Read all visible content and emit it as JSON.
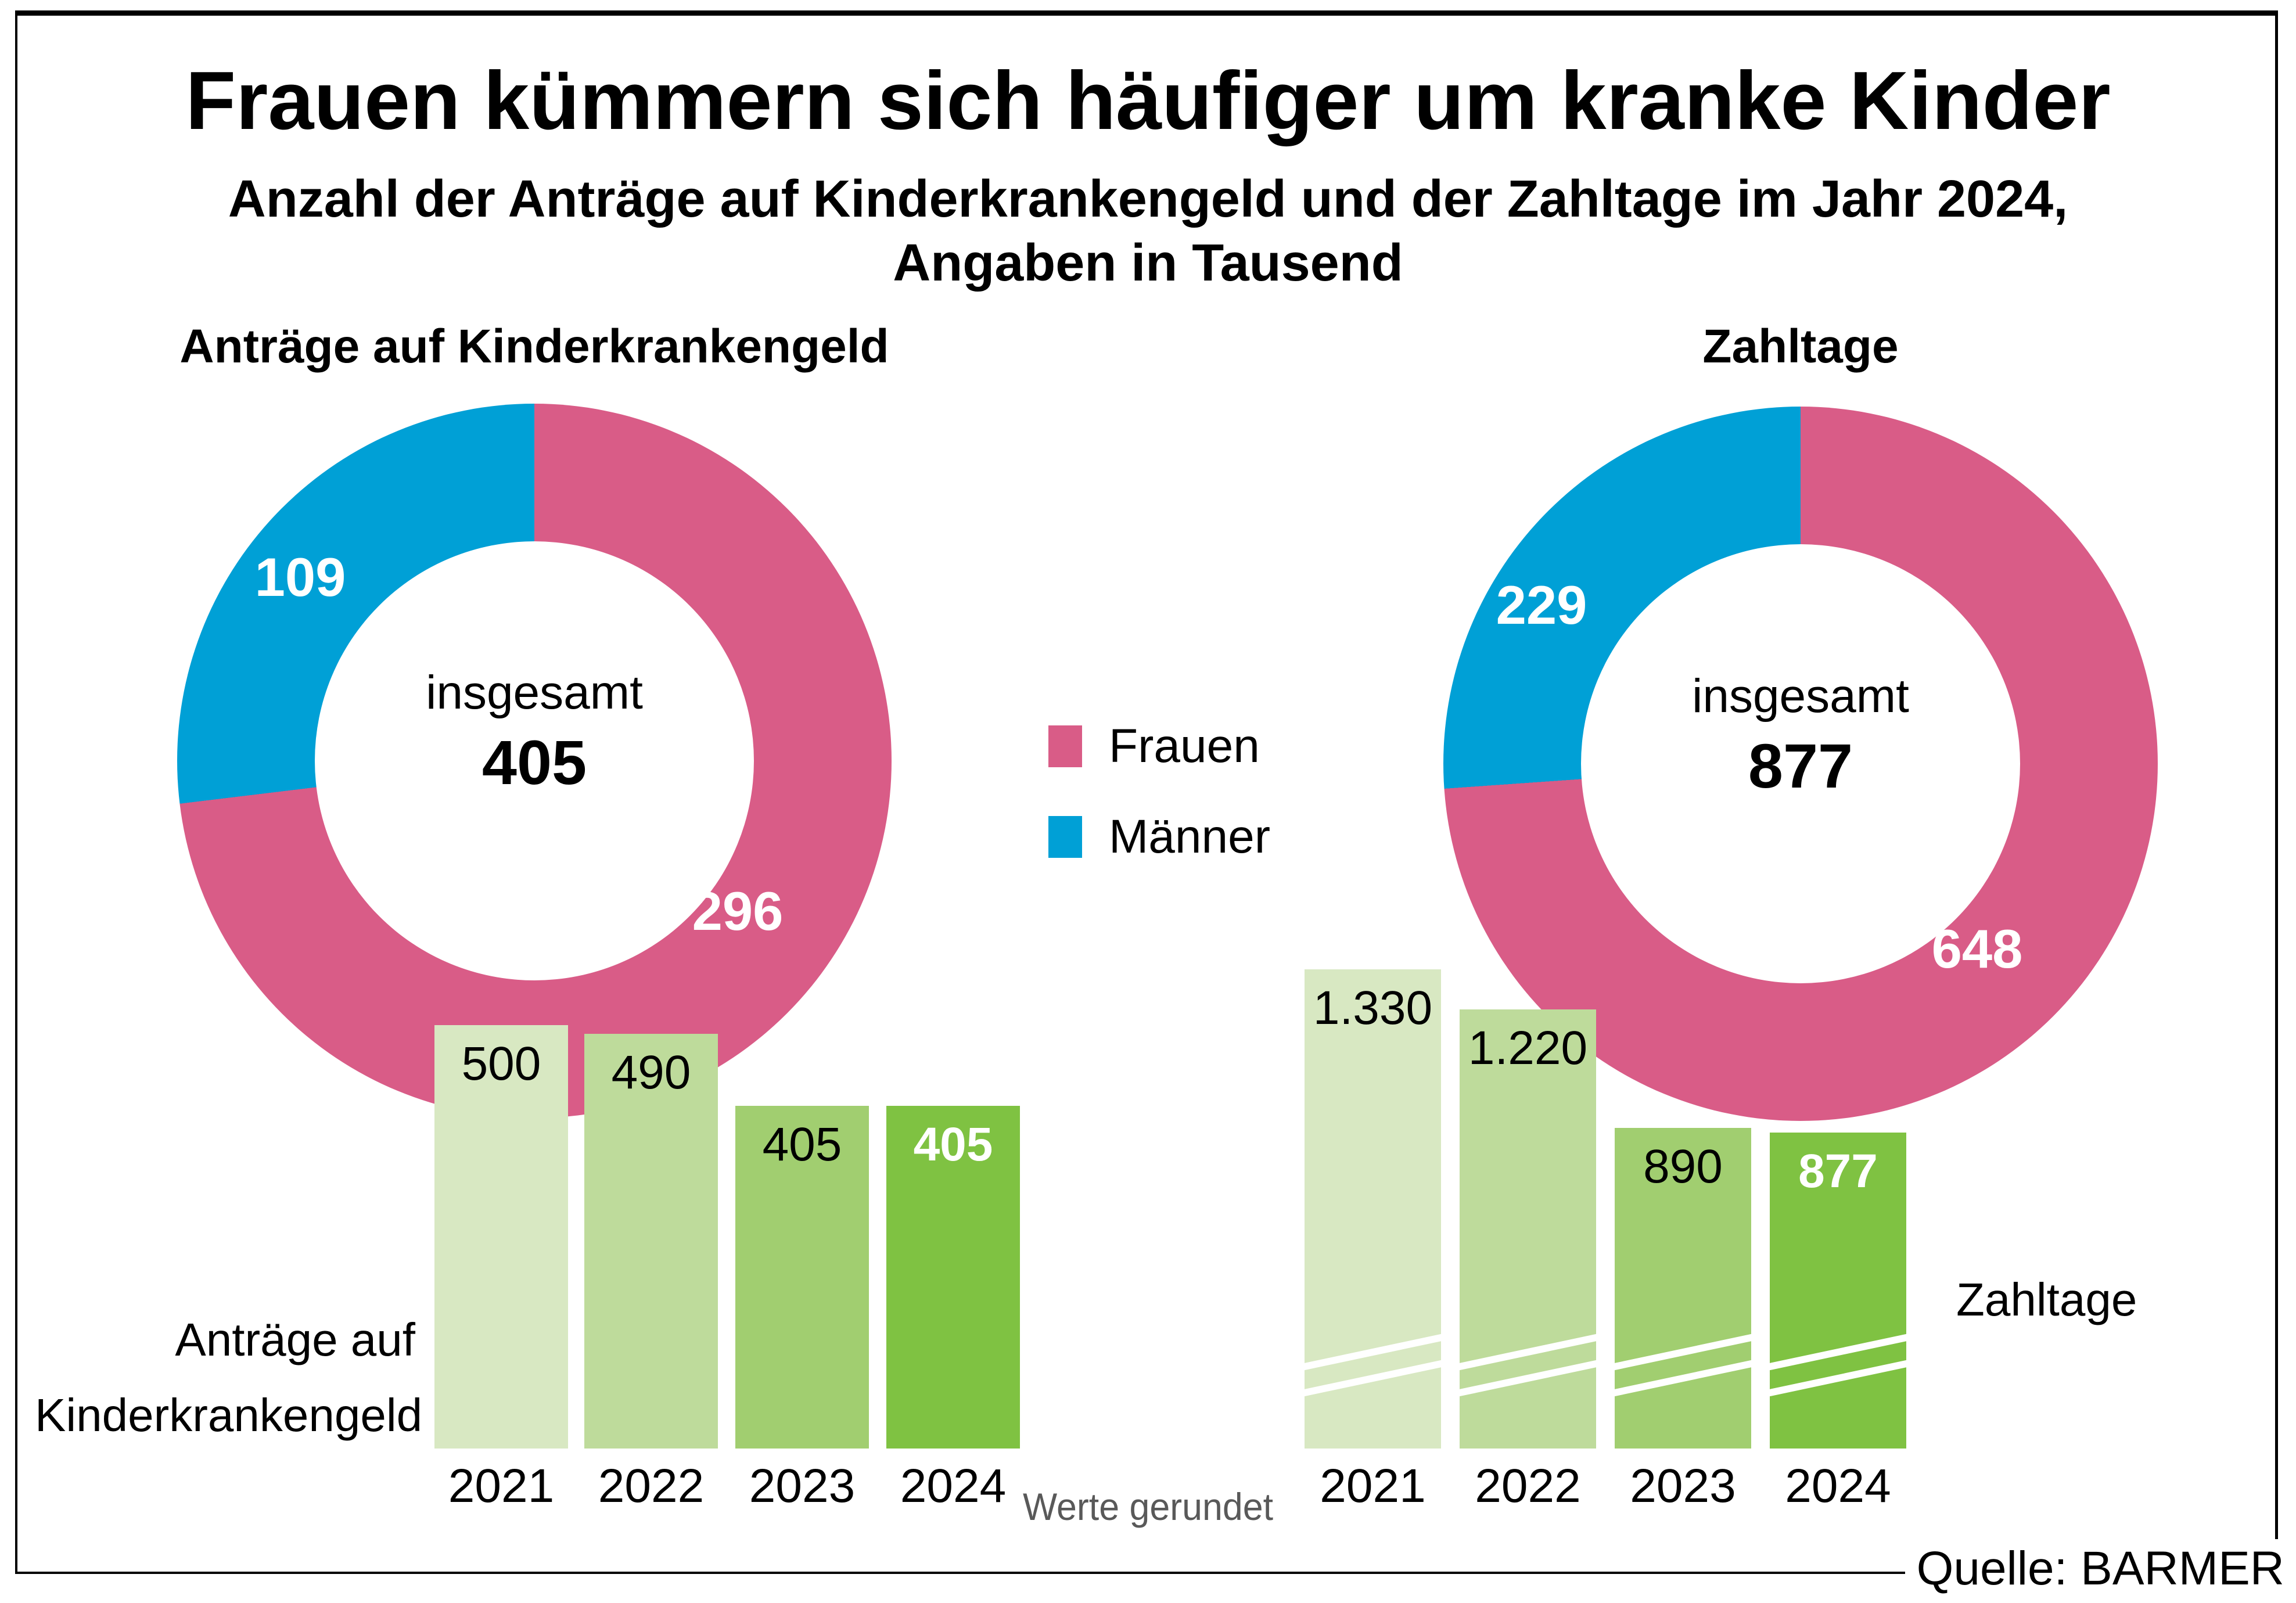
{
  "header": {
    "title": "Frauen kümmern sich häufiger um kranke Kinder",
    "subtitle_line1": "Anzahl der Anträge auf Kinderkrankengeld und der Zahltage im Jahr 2024,",
    "subtitle_line2": "Angaben in Tausend"
  },
  "colors": {
    "frauen_pink": "#d95c87",
    "maenner_blue": "#00a0d6",
    "bar_greens": [
      "#d8e8c2",
      "#bedb9b",
      "#a1ce70",
      "#7fc242"
    ],
    "note_gray": "#595959"
  },
  "legend": {
    "items": [
      {
        "label": "Frauen",
        "color": "#d95c87"
      },
      {
        "label": "Männer",
        "color": "#00a0d6"
      }
    ]
  },
  "chart_data": [
    {
      "type": "pie",
      "subtype": "donut",
      "title": "Anträge auf Kinderkrankengeld",
      "center_label": "insgesamt",
      "total": 405,
      "total_label": "405",
      "segments": [
        {
          "name": "Frauen",
          "value": 296,
          "label": "296",
          "color": "#d95c87"
        },
        {
          "name": "Männer",
          "value": 109,
          "label": "109",
          "color": "#00a0d6"
        }
      ]
    },
    {
      "type": "pie",
      "subtype": "donut",
      "title": "Zahltage",
      "center_label": "insgesamt",
      "total": 877,
      "total_label": "877",
      "segments": [
        {
          "name": "Frauen",
          "value": 648,
          "label": "648",
          "color": "#d95c87"
        },
        {
          "name": "Männer",
          "value": 229,
          "label": "229",
          "color": "#00a0d6"
        }
      ]
    },
    {
      "type": "bar",
      "title": "Anträge auf Kinderkrankengeld",
      "side_label_line1": "Anträge auf",
      "side_label_line2": "Kinderkrankengeld",
      "axis_break": false,
      "categories": [
        "2021",
        "2022",
        "2023",
        "2024"
      ],
      "bars": [
        {
          "year": "2021",
          "value": 500,
          "label": "500",
          "color": "#d8e8c2",
          "highlighted": false
        },
        {
          "year": "2022",
          "value": 490,
          "label": "490",
          "color": "#bedb9b",
          "highlighted": false
        },
        {
          "year": "2023",
          "value": 405,
          "label": "405",
          "color": "#a1ce70",
          "highlighted": false
        },
        {
          "year": "2024",
          "value": 405,
          "label": "405",
          "color": "#7fc242",
          "highlighted": true
        }
      ]
    },
    {
      "type": "bar",
      "title": "Zahltage",
      "side_label": "Zahltage",
      "axis_break": true,
      "categories": [
        "2021",
        "2022",
        "2023",
        "2024"
      ],
      "bars": [
        {
          "year": "2021",
          "value": 1330,
          "label": "1.330",
          "color": "#d8e8c2",
          "highlighted": false
        },
        {
          "year": "2022",
          "value": 1220,
          "label": "1.220",
          "color": "#bedb9b",
          "highlighted": false
        },
        {
          "year": "2023",
          "value": 890,
          "label": "890",
          "color": "#a1ce70",
          "highlighted": false
        },
        {
          "year": "2024",
          "value": 877,
          "label": "877",
          "color": "#7fc242",
          "highlighted": true
        }
      ]
    }
  ],
  "footer": {
    "note": "Werte gerundet",
    "source": "Quelle: BARMER"
  }
}
